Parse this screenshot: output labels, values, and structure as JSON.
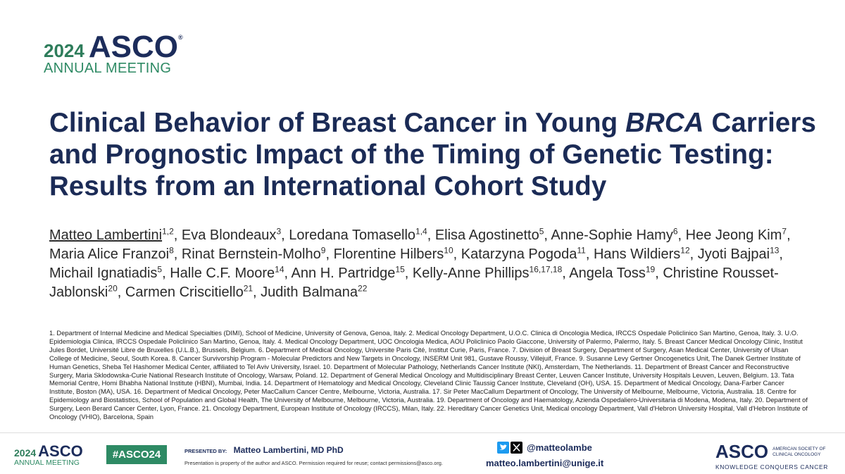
{
  "header": {
    "year": "2024",
    "brand": "ASCO",
    "registered": "®",
    "meeting": "ANNUAL MEETING"
  },
  "title": {
    "parts": [
      "Clinical Behavior of Breast Cancer in Young",
      "BRCA",
      "Carriers and Prognostic Impact of the Timing of Genetic Testing: Results from an International Cohort Study"
    ]
  },
  "authors": [
    {
      "name": "Matteo Lambertini",
      "aff": "1,2"
    },
    {
      "name": "Eva Blondeaux",
      "aff": "3"
    },
    {
      "name": "Loredana Tomasello",
      "aff": "1,4"
    },
    {
      "name": "Elisa Agostinetto",
      "aff": "5"
    },
    {
      "name": "Anne-Sophie Hamy",
      "aff": "6"
    },
    {
      "name": "Hee Jeong Kim",
      "aff": "7"
    },
    {
      "name": "Maria Alice Franzoi",
      "aff": "8"
    },
    {
      "name": "Rinat Bernstein-Molho",
      "aff": "9"
    },
    {
      "name": "Florentine Hilbers",
      "aff": "10"
    },
    {
      "name": "Katarzyna Pogoda",
      "aff": "11"
    },
    {
      "name": "Hans Wildiers",
      "aff": "12"
    },
    {
      "name": "Jyoti Bajpai",
      "aff": "13"
    },
    {
      "name": "Michail Ignatiadis",
      "aff": "5"
    },
    {
      "name": "Halle C.F. Moore",
      "aff": "14"
    },
    {
      "name": "Ann H. Partridge",
      "aff": "15"
    },
    {
      "name": "Kelly-Anne Phillips",
      "aff": "16,17,18"
    },
    {
      "name": "Angela Toss",
      "aff": "19"
    },
    {
      "name": "Christine Rousset-Jablonski",
      "aff": "20"
    },
    {
      "name": "Carmen Criscitiello",
      "aff": "21"
    },
    {
      "name": "Judith Balmana",
      "aff": "22"
    }
  ],
  "affiliations": "1. Department of Internal Medicine and Medical Specialties (DIMI), School of Medicine, University of Genova, Genoa, Italy. 2. Medical Oncology Department, U.O.C. Clinica di Oncologia Medica, IRCCS Ospedale Policlinico San Martino, Genoa, Italy. 3. U.O. Epidemiologia Clinica, IRCCS Ospedale Policlinico San Martino, Genoa, Italy. 4. Medical Oncology Department, UOC Oncologia Medica, AOU Policlinico Paolo Giaccone, University of Palermo, Palermo, Italy. 5. Breast Cancer Medical Oncology Clinic, Institut Jules Bordet, Université Libre de Bruxelles (U.L.B.), Brussels, Belgium. 6. Department of Medical Oncology, Universite Paris Cité, Institut Curie, Paris, France. 7. Division of Breast Surgery, Department of Surgery, Asan Medical Center, University of Ulsan College of Medicine, Seoul, South Korea. 8. Cancer Survivorship Program - Molecular Predictors and New Targets in Oncology, INSERM Unit 981, Gustave Roussy, Villejuif, France. 9. Susanne Levy Gertner Oncogenetics Unit, The Danek Gertner Institute of Human Genetics, Sheba Tel Hashomer Medical Center, affiliated to Tel Aviv University, Israel. 10. Department of Molecular Pathology, Netherlands Cancer Institute (NKI), Amsterdam, The Netherlands. 11. Department of Breast Cancer and Reconstructive Surgery, Maria Sklodowska-Curie National Research Institute of Oncology, Warsaw, Poland. 12. Department of General Medical Oncology and Multidisciplinary Breast Center, Leuven Cancer Institute, University Hospitals Leuven, Leuven, Belgium. 13. Tata Memorial Centre, Homi Bhabha National Institute (HBNI), Mumbai, India. 14. Department of Hematology and Medical Oncology, Cleveland Clinic Taussig Cancer Institute, Cleveland (OH), USA. 15. Department of Medical Oncology, Dana-Farber Cancer Institute, Boston (MA), USA. 16. Department of Medical Oncology, Peter MacCallum Cancer Centre, Melbourne, Victoria, Australia. 17. Sir Peter MacCallum Department of Oncology, The University of Melbourne, Melbourne, Victoria, Australia. 18. Centre for Epidemiology and Biostatistics, School of Population and Global Health, The University of Melbourne, Melbourne, Victoria, Australia. 19. Department of Oncology and Haematology, Azienda Ospedaliero-Universitaria di Modena, Modena, Italy. 20. Department of Surgery, Leon Berard Cancer Center, Lyon, France. 21. Oncology Department, European Institute of Oncology (IRCCS), Milan, Italy. 22. Hereditary Cancer Genetics Unit, Medical oncology Department, Vall d'Hebron University Hospital, Vall d'Hebron Institute of Oncology (VHIO), Barcelona, Spain",
  "footer": {
    "year": "2024",
    "brand": "ASCO",
    "meeting": "ANNUAL MEETING",
    "hashtag": "#ASCO24",
    "presented_by_label": "PRESENTED BY:",
    "presenter": "Matteo Lambertini, MD PhD",
    "notice": "Presentation is property of the author and ASCO. Permission required for reuse; contact permissions@asco.org.",
    "handle": "@matteolambe",
    "email": "matteo.lambertini@unige.it",
    "society_brand": "ASCO",
    "society_name": "AMERICAN SOCIETY OF CLINICAL ONCOLOGY",
    "tagline": "KNOWLEDGE CONQUERS CANCER"
  }
}
